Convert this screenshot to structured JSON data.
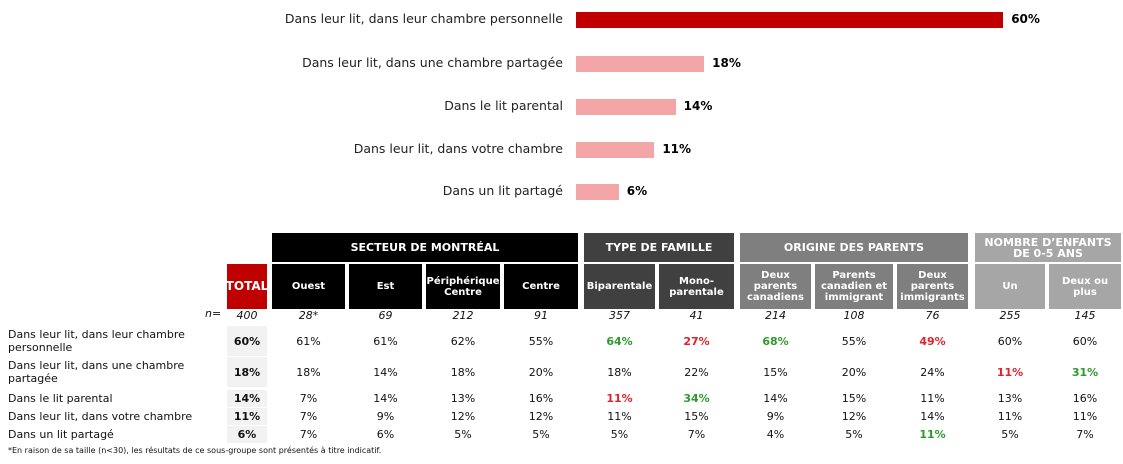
{
  "chart_data": {
    "type": "bar",
    "orientation": "horizontal",
    "categories": [
      "Dans leur lit, dans leur chambre personnelle",
      "Dans leur lit, dans une chambre partagée",
      "Dans le lit parental",
      "Dans leur lit, dans votre chambre",
      "Dans un lit partagé"
    ],
    "values": [
      60,
      18,
      14,
      11,
      6
    ],
    "value_labels": [
      "60%",
      "18%",
      "14%",
      "11%",
      "6%"
    ],
    "colors": [
      "#c00000",
      "#f4a6a6",
      "#f4a6a6",
      "#f4a6a6",
      "#f4a6a6"
    ]
  },
  "table": {
    "total_header": "TOTAL",
    "n_label": "n=",
    "groups": [
      {
        "label": "SECTEUR DE MONTRÉAL",
        "span": 4,
        "color": "#000000"
      },
      {
        "label": "TYPE DE FAMILLE",
        "span": 2,
        "color": "#404040"
      },
      {
        "label": "ORIGINE DES PARENTS",
        "span": 3,
        "color": "#7f7f7f"
      },
      {
        "label": "NOMBRE D’ENFANTS DE 0-5 ANS",
        "span": 2,
        "color": "#a6a6a6"
      }
    ],
    "columns": [
      "Ouest",
      "Est",
      "Périphérique Centre",
      "Centre",
      "Biparentale",
      "Mono-parentale",
      "Deux parents canadiens",
      "Parents canadien et immigrant",
      "Deux parents immigrants",
      "Un",
      "Deux ou plus"
    ],
    "n": {
      "total": "400",
      "cells": [
        "28*",
        "69",
        "212",
        "91",
        "357",
        "41",
        "214",
        "108",
        "76",
        "255",
        "145"
      ]
    },
    "rows": [
      {
        "label": "Dans leur lit, dans leur chambre personnelle",
        "total": "60%",
        "cells": [
          "61%",
          "61%",
          "62%",
          "55%",
          "64%",
          "27%",
          "68%",
          "55%",
          "49%",
          "60%",
          "60%"
        ],
        "colors": [
          null,
          null,
          null,
          null,
          "#2e9a2e",
          "#e3212b",
          "#2e9a2e",
          null,
          "#e3212b",
          null,
          null
        ]
      },
      {
        "label": "Dans leur lit, dans une chambre partagée",
        "total": "18%",
        "cells": [
          "18%",
          "14%",
          "18%",
          "20%",
          "18%",
          "22%",
          "15%",
          "20%",
          "24%",
          "11%",
          "31%"
        ],
        "colors": [
          null,
          null,
          null,
          null,
          null,
          null,
          null,
          null,
          null,
          "#e3212b",
          "#2e9a2e"
        ]
      },
      {
        "label": "Dans le lit parental",
        "total": "14%",
        "cells": [
          "7%",
          "14%",
          "13%",
          "16%",
          "11%",
          "34%",
          "14%",
          "15%",
          "11%",
          "13%",
          "16%"
        ],
        "colors": [
          null,
          null,
          null,
          null,
          "#e3212b",
          "#2e9a2e",
          null,
          null,
          null,
          null,
          null
        ]
      },
      {
        "label": "Dans leur lit, dans votre chambre",
        "total": "11%",
        "cells": [
          "7%",
          "9%",
          "12%",
          "12%",
          "11%",
          "15%",
          "9%",
          "12%",
          "14%",
          "11%",
          "11%"
        ],
        "colors": [
          null,
          null,
          null,
          null,
          null,
          null,
          null,
          null,
          null,
          null,
          null
        ]
      },
      {
        "label": "Dans un lit partagé",
        "total": "6%",
        "cells": [
          "7%",
          "6%",
          "5%",
          "5%",
          "5%",
          "7%",
          "4%",
          "5%",
          "11%",
          "5%",
          "7%"
        ],
        "colors": [
          null,
          null,
          null,
          null,
          null,
          null,
          null,
          null,
          "#2e9a2e",
          null,
          null
        ]
      }
    ],
    "footnote": "*En raison de sa taille (n<30), les résultats de ce sous-groupe sont présentés à titre indicatif."
  }
}
